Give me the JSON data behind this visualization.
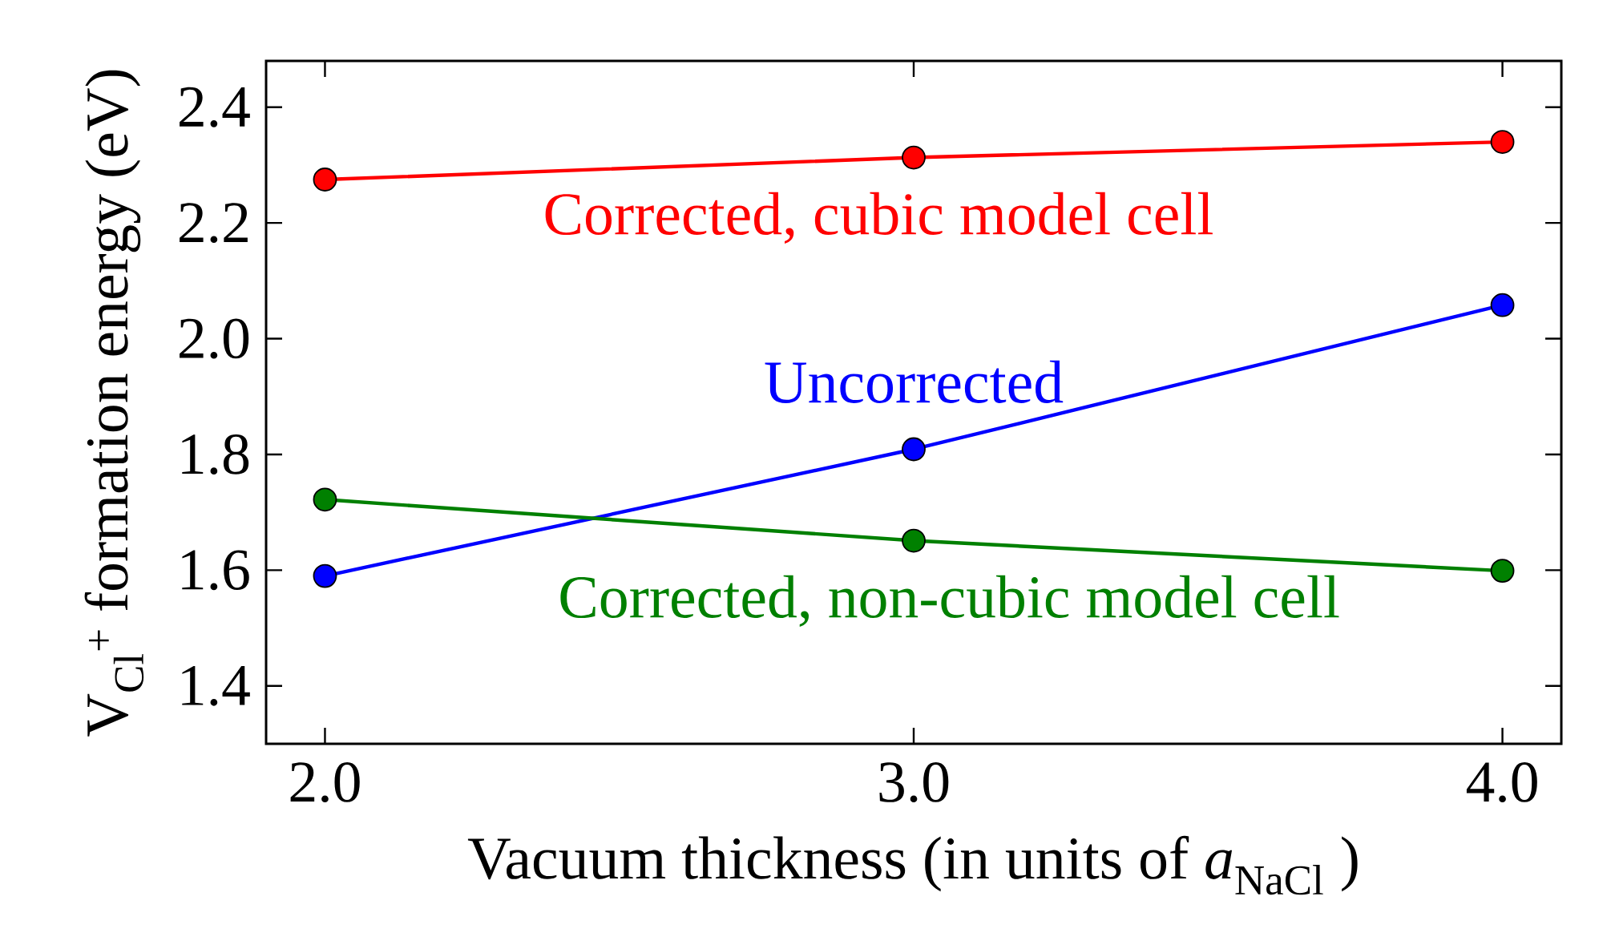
{
  "chart_data": {
    "type": "line",
    "xlabel": "Vacuum thickness (in units of *a*$_{NaCl}$ )",
    "ylabel": "V$_{Cl}$$^{+}$ formation energy (eV)",
    "x": [
      2.0,
      3.0,
      4.0
    ],
    "series": [
      {
        "name": "Corrected, cubic model cell",
        "color": "#ff0000",
        "values": [
          2.275,
          2.313,
          2.34
        ]
      },
      {
        "name": "Uncorrected",
        "color": "#0000ff",
        "values": [
          1.59,
          1.809,
          2.058
        ]
      },
      {
        "name": "Corrected, non-cubic model cell",
        "color": "#008000",
        "values": [
          1.722,
          1.651,
          1.599
        ]
      }
    ],
    "xlim": [
      1.9,
      4.1
    ],
    "ylim": [
      1.3,
      2.48
    ],
    "xticks": [
      {
        "value": 2.0,
        "label": "2.0"
      },
      {
        "value": 3.0,
        "label": "3.0"
      },
      {
        "value": 4.0,
        "label": "4.0"
      }
    ],
    "yticks": [
      1.4,
      1.6,
      1.8,
      {
        "value": 2.0,
        "label": "2.0"
      },
      2.2,
      2.4
    ],
    "marker": "circle",
    "line_style": "solid",
    "grid": false,
    "legend": "center"
  }
}
